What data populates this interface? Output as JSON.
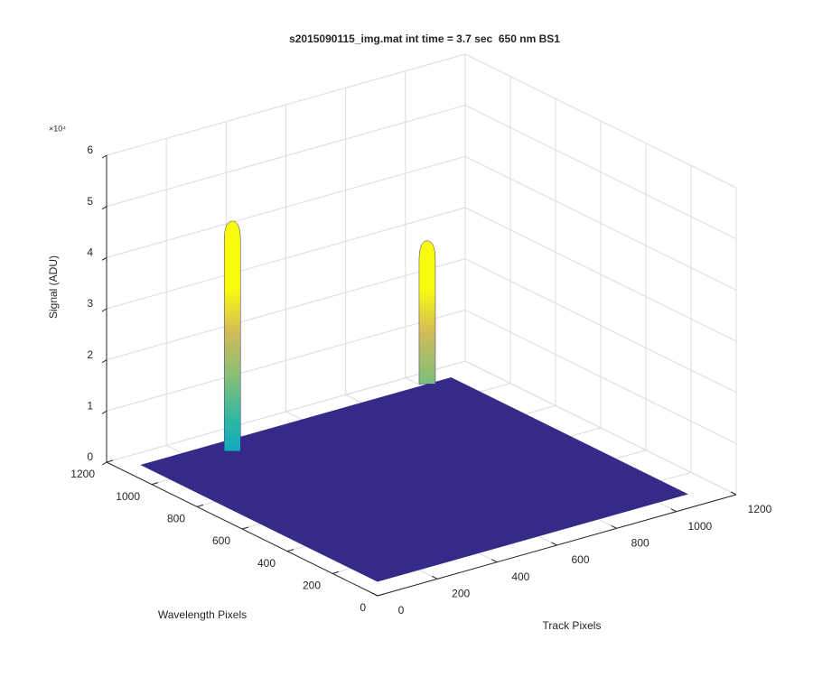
{
  "chart_data": {
    "type": "surface",
    "title": "s2015090115_img.mat int time = 3.7 sec  650 nm BS1",
    "xlabel": "Track Pixels",
    "ylabel": "Wavelength Pixels",
    "zlabel": "Signal (ADU)",
    "zscale_label": "×10⁴",
    "xlim": [
      0,
      1200
    ],
    "ylim": [
      0,
      1200
    ],
    "zlim": [
      0,
      60000
    ],
    "xticks": [
      0,
      200,
      400,
      600,
      800,
      1000,
      1200
    ],
    "yticks": [
      0,
      200,
      400,
      600,
      800,
      1000,
      1200
    ],
    "zticks": [
      0,
      {
        "value": 10000,
        "label": "1"
      },
      {
        "value": 20000,
        "label": "2"
      },
      {
        "value": 30000,
        "label": "3"
      },
      {
        "value": 40000,
        "label": "4"
      },
      {
        "value": 50000,
        "label": "5"
      },
      {
        "value": 60000,
        "label": "6"
      }
    ],
    "grid": true,
    "colormap": [
      "#352a87",
      "#0f5cdd",
      "#1481d6",
      "#06a4ca",
      "#2eb7a4",
      "#87bf77",
      "#d1bb59",
      "#f9fb0e"
    ],
    "surface": {
      "x": [
        60,
        1100
      ],
      "y": [
        80,
        1130
      ],
      "base": 0
    },
    "peaks": [
      {
        "x": 315,
        "y": 1060,
        "z": 45000
      },
      {
        "x": 1020,
        "y": 1130,
        "z": 28000
      }
    ]
  }
}
